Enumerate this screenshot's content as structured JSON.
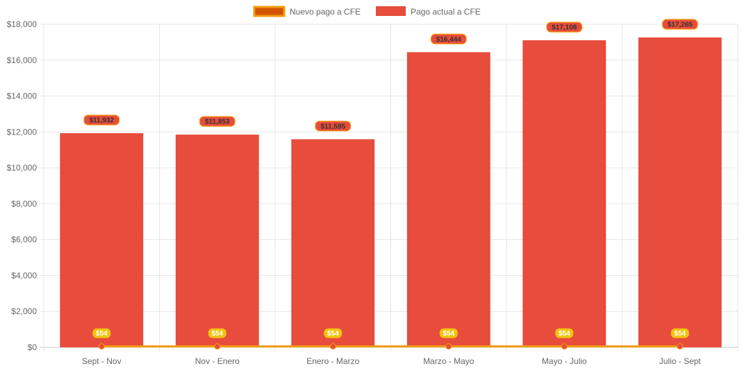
{
  "chart_data": {
    "type": "bar",
    "title": "",
    "xlabel": "",
    "ylabel": "",
    "categories": [
      "Sept - Nov",
      "Nov - Enero",
      "Enero - Marzo",
      "Marzo - Mayo",
      "Mayo - Julio",
      "Julio - Sept"
    ],
    "series": [
      {
        "name": "Nuevo pago a CFE",
        "type": "line",
        "values": [
          54,
          54,
          54,
          54,
          54,
          54
        ],
        "labels": [
          "$54",
          "$54",
          "$54",
          "$54",
          "$54",
          "$54"
        ],
        "color": "#F39C12",
        "legend_fill": "#D35400"
      },
      {
        "name": "Pago actual a CFE",
        "type": "bar",
        "values": [
          11932,
          11853,
          11595,
          16444,
          17108,
          17265
        ],
        "labels": [
          "$11,932",
          "$11,853",
          "$11,595",
          "$16,444",
          "$17,108",
          "$17,265"
        ],
        "color": "#E74C3C"
      }
    ],
    "ylim": [
      0,
      18000
    ],
    "y_ticks": [
      0,
      2000,
      4000,
      6000,
      8000,
      10000,
      12000,
      14000,
      16000,
      18000
    ],
    "y_tick_labels": [
      "$0",
      "$2,000",
      "$4,000",
      "$6,000",
      "$8,000",
      "$10,000",
      "$12,000",
      "$14,000",
      "$16,000",
      "$18,000"
    ],
    "grid": true,
    "legend_position": "top-center"
  }
}
